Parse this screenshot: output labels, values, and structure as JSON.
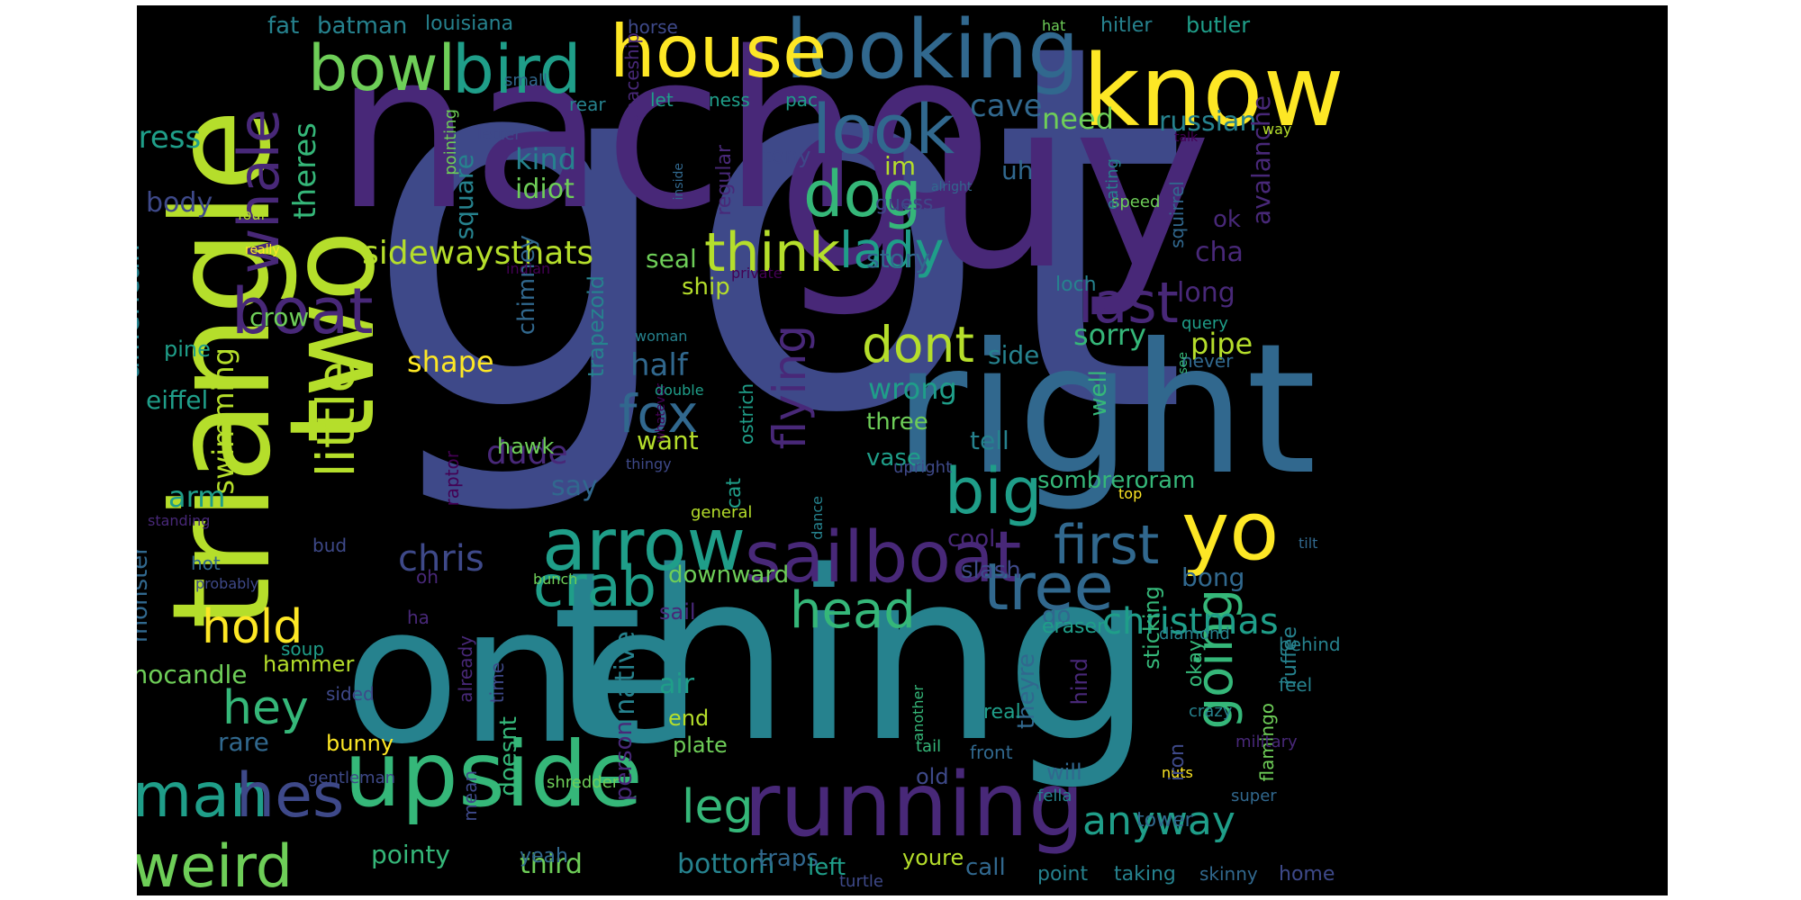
{
  "palette": {
    "v1": "#440154",
    "v2": "#482878",
    "v3": "#3e4989",
    "v4": "#31688e",
    "v5": "#26828e",
    "v6": "#1f9e89",
    "v7": "#35b779",
    "v8": "#6ece58",
    "v9": "#b5de2b",
    "v10": "#fde725"
  },
  "words": [
    {
      "text": "got",
      "c": "v3"
    },
    {
      "text": "nacho",
      "c": "v2"
    },
    {
      "text": "guy",
      "c": "v2"
    },
    {
      "text": "thing",
      "c": "v5"
    },
    {
      "text": "one",
      "c": "v5"
    },
    {
      "text": "right",
      "c": "v4"
    },
    {
      "text": "triangle",
      "c": "v9"
    },
    {
      "text": "two",
      "c": "v9"
    },
    {
      "text": "know",
      "c": "v10"
    },
    {
      "text": "looking",
      "c": "v4"
    },
    {
      "text": "house",
      "c": "v10"
    },
    {
      "text": "bird",
      "c": "v6"
    },
    {
      "text": "bowl",
      "c": "v8"
    },
    {
      "text": "upside",
      "c": "v7"
    },
    {
      "text": "running",
      "c": "v2"
    },
    {
      "text": "yo",
      "c": "v10"
    },
    {
      "text": "arrow",
      "c": "v6"
    },
    {
      "text": "sailboat",
      "c": "v2"
    },
    {
      "text": "tree",
      "c": "v4"
    },
    {
      "text": "look",
      "c": "v4"
    },
    {
      "text": "boat",
      "c": "v2"
    },
    {
      "text": "whale",
      "c": "v2"
    },
    {
      "text": "dog",
      "c": "v7"
    },
    {
      "text": "lady",
      "c": "v6"
    },
    {
      "text": "think",
      "c": "v9"
    },
    {
      "text": "last",
      "c": "v2"
    },
    {
      "text": "dont",
      "c": "v9"
    },
    {
      "text": "big",
      "c": "v6"
    },
    {
      "text": "first",
      "c": "v4"
    },
    {
      "text": "little",
      "c": "v9"
    },
    {
      "text": "fox",
      "c": "v4"
    },
    {
      "text": "flying",
      "c": "v2"
    },
    {
      "text": "crab",
      "c": "v6"
    },
    {
      "text": "head",
      "c": "v7"
    },
    {
      "text": "going",
      "c": "v7"
    },
    {
      "text": "hold",
      "c": "v10"
    },
    {
      "text": "hey",
      "c": "v7"
    },
    {
      "text": "man",
      "c": "v6"
    },
    {
      "text": "hes",
      "c": "v3"
    },
    {
      "text": "weird",
      "c": "v8"
    },
    {
      "text": "leg",
      "c": "v7"
    },
    {
      "text": "anyway",
      "c": "v6"
    },
    {
      "text": "christmas",
      "c": "v6"
    },
    {
      "text": "sidewaysthats",
      "c": "v9"
    },
    {
      "text": "dude",
      "c": "v2"
    },
    {
      "text": "chris",
      "c": "v3"
    },
    {
      "text": "say",
      "c": "v4"
    },
    {
      "text": "half",
      "c": "v4"
    },
    {
      "text": "shape",
      "c": "v10"
    },
    {
      "text": "swimming",
      "c": "v9"
    },
    {
      "text": "arm",
      "c": "v6"
    },
    {
      "text": "cave",
      "c": "v4"
    },
    {
      "text": "need",
      "c": "v8"
    },
    {
      "text": "russian",
      "c": "v5"
    },
    {
      "text": "kind",
      "c": "v5"
    },
    {
      "text": "idiot",
      "c": "v8"
    },
    {
      "text": "square",
      "c": "v5"
    },
    {
      "text": "theres",
      "c": "v7"
    },
    {
      "text": "dress",
      "c": "v6"
    },
    {
      "text": "body",
      "c": "v3"
    },
    {
      "text": "american",
      "c": "v5"
    },
    {
      "text": "crow",
      "c": "v8"
    },
    {
      "text": "pine",
      "c": "v6"
    },
    {
      "text": "eiffel",
      "c": "v6"
    },
    {
      "text": "pipe",
      "c": "v9"
    },
    {
      "text": "sorry",
      "c": "v7"
    },
    {
      "text": "wrong",
      "c": "v6"
    },
    {
      "text": "side",
      "c": "v5"
    },
    {
      "text": "seal",
      "c": "v8"
    },
    {
      "text": "ship",
      "c": "v9"
    },
    {
      "text": "story",
      "c": "v4"
    },
    {
      "text": "long",
      "c": "v2"
    },
    {
      "text": "cha",
      "c": "v2"
    },
    {
      "text": "ok",
      "c": "v2"
    },
    {
      "text": "avalanche",
      "c": "v2"
    },
    {
      "text": "im",
      "c": "v9"
    },
    {
      "text": "uh",
      "c": "v4"
    },
    {
      "text": "guess",
      "c": "v3"
    },
    {
      "text": "three",
      "c": "v8"
    },
    {
      "text": "vase",
      "c": "v6"
    },
    {
      "text": "tell",
      "c": "v5"
    },
    {
      "text": "well",
      "c": "v7"
    },
    {
      "text": "sombreroram",
      "c": "v7"
    },
    {
      "text": "bong",
      "c": "v4"
    },
    {
      "text": "slash",
      "c": "v3"
    },
    {
      "text": "cool",
      "c": "v2"
    },
    {
      "text": "downward",
      "c": "v8"
    },
    {
      "text": "sail",
      "c": "v2"
    },
    {
      "text": "native",
      "c": "v5"
    },
    {
      "text": "air",
      "c": "v6"
    },
    {
      "text": "end",
      "c": "v9"
    },
    {
      "text": "plate",
      "c": "v8"
    },
    {
      "text": "person",
      "c": "v2"
    },
    {
      "text": "doesnt",
      "c": "v7"
    },
    {
      "text": "want",
      "c": "v9"
    },
    {
      "text": "hawk",
      "c": "v8"
    },
    {
      "text": "trapezoid",
      "c": "v5"
    },
    {
      "text": "chimney",
      "c": "v4"
    },
    {
      "text": "tony",
      "c": "v3"
    },
    {
      "text": "regular",
      "c": "v2"
    },
    {
      "text": "ostrich",
      "c": "v6"
    },
    {
      "text": "cat",
      "c": "v6"
    },
    {
      "text": "dance",
      "c": "v5"
    },
    {
      "text": "upright",
      "c": "v3"
    },
    {
      "text": "general",
      "c": "v9"
    },
    {
      "text": "monster",
      "c": "v4"
    },
    {
      "text": "mocandle",
      "c": "v8"
    },
    {
      "text": "hammer",
      "c": "v9"
    },
    {
      "text": "rare",
      "c": "v4"
    },
    {
      "text": "bunny",
      "c": "v10"
    },
    {
      "text": "pointy",
      "c": "v7"
    },
    {
      "text": "third",
      "c": "v8"
    },
    {
      "text": "bottom",
      "c": "v5"
    },
    {
      "text": "yeah",
      "c": "v4"
    },
    {
      "text": "traps",
      "c": "v4"
    },
    {
      "text": "left",
      "c": "v6"
    },
    {
      "text": "youre",
      "c": "v9"
    },
    {
      "text": "call",
      "c": "v4"
    },
    {
      "text": "point",
      "c": "v5"
    },
    {
      "text": "taking",
      "c": "v5"
    },
    {
      "text": "skinny",
      "c": "v4"
    },
    {
      "text": "home",
      "c": "v3"
    },
    {
      "text": "turtle",
      "c": "v3"
    },
    {
      "text": "tower",
      "c": "v4"
    },
    {
      "text": "super",
      "c": "v4"
    },
    {
      "text": "flamingo",
      "c": "v8"
    },
    {
      "text": "ruffee",
      "c": "v5"
    },
    {
      "text": "okay",
      "c": "v7"
    },
    {
      "text": "sticking",
      "c": "v7"
    },
    {
      "text": "nuts",
      "c": "v10"
    },
    {
      "text": "military",
      "c": "v2"
    },
    {
      "text": "iron",
      "c": "v3"
    },
    {
      "text": "will",
      "c": "v4"
    },
    {
      "text": "hind",
      "c": "v2"
    },
    {
      "text": "theyre",
      "c": "v4"
    },
    {
      "text": "go",
      "c": "v4"
    },
    {
      "text": "eraser",
      "c": "v6"
    },
    {
      "text": "diamond",
      "c": "v5"
    },
    {
      "text": "behind",
      "c": "v5"
    },
    {
      "text": "feel",
      "c": "v5"
    },
    {
      "text": "crazy",
      "c": "v5"
    },
    {
      "text": "front",
      "c": "v4"
    },
    {
      "text": "real",
      "c": "v6"
    },
    {
      "text": "old",
      "c": "v3"
    },
    {
      "text": "tail",
      "c": "v7"
    },
    {
      "text": "another",
      "c": "v7"
    },
    {
      "text": "fella",
      "c": "v5"
    },
    {
      "text": "time",
      "c": "v3"
    },
    {
      "text": "mean",
      "c": "v3"
    },
    {
      "text": "already",
      "c": "v2"
    },
    {
      "text": "shredder",
      "c": "v8"
    },
    {
      "text": "gentleman",
      "c": "v3"
    },
    {
      "text": "sided",
      "c": "v3"
    },
    {
      "text": "soup",
      "c": "v6"
    },
    {
      "text": "oh",
      "c": "v2"
    },
    {
      "text": "ha",
      "c": "v2"
    },
    {
      "text": "hot",
      "c": "v4"
    },
    {
      "text": "bud",
      "c": "v3"
    },
    {
      "text": "bunch",
      "c": "v8"
    },
    {
      "text": "probably",
      "c": "v3"
    },
    {
      "text": "standing",
      "c": "v2"
    },
    {
      "text": "raptor",
      "c": "v1"
    },
    {
      "text": "thingy",
      "c": "v3"
    },
    {
      "text": "whatever",
      "c": "v1"
    },
    {
      "text": "double",
      "c": "v6"
    },
    {
      "text": "woman",
      "c": "v5"
    },
    {
      "text": "pointing",
      "c": "v8"
    },
    {
      "text": "four",
      "c": "v9"
    },
    {
      "text": "really",
      "c": "v10"
    },
    {
      "text": "indian",
      "c": "v1"
    },
    {
      "text": "private",
      "c": "v1"
    },
    {
      "text": "inside",
      "c": "v4"
    },
    {
      "text": "alright",
      "c": "v4"
    },
    {
      "text": "speed",
      "c": "v8"
    },
    {
      "text": "eating",
      "c": "v5"
    },
    {
      "text": "squirrel",
      "c": "v4"
    },
    {
      "text": "loch",
      "c": "v5"
    },
    {
      "text": "query",
      "c": "v6"
    },
    {
      "text": "never",
      "c": "v4"
    },
    {
      "text": "see",
      "c": "v7"
    },
    {
      "text": "top",
      "c": "v10"
    },
    {
      "text": "tilt",
      "c": "v4"
    },
    {
      "text": "talk",
      "c": "v1"
    },
    {
      "text": "way",
      "c": "v9"
    },
    {
      "text": "letter",
      "c": "v3"
    },
    {
      "text": "rear",
      "c": "v5"
    },
    {
      "text": "let",
      "c": "v6"
    },
    {
      "text": "ness",
      "c": "v6"
    },
    {
      "text": "pac",
      "c": "v6"
    },
    {
      "text": "spaceship",
      "c": "v2"
    },
    {
      "text": "small",
      "c": "v4"
    },
    {
      "text": "horse",
      "c": "v3"
    },
    {
      "text": "louisiana",
      "c": "v5"
    },
    {
      "text": "batman",
      "c": "v5"
    },
    {
      "text": "fat",
      "c": "v5"
    },
    {
      "text": "hat",
      "c": "v8"
    },
    {
      "text": "hitler",
      "c": "v5"
    },
    {
      "text": "butler",
      "c": "v6"
    }
  ]
}
